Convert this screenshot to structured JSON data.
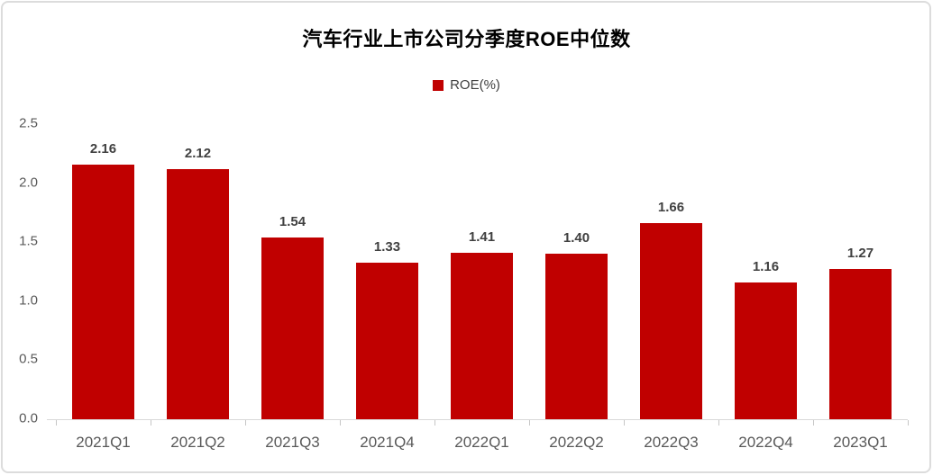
{
  "chart_data": {
    "type": "bar",
    "title": "汽车行业上市公司分季度ROE中位数",
    "legend": "ROE(%)",
    "categories": [
      "2021Q1",
      "2021Q2",
      "2021Q3",
      "2021Q4",
      "2022Q1",
      "2022Q2",
      "2022Q3",
      "2022Q4",
      "2023Q1"
    ],
    "values": [
      2.16,
      2.12,
      1.54,
      1.33,
      1.41,
      1.4,
      1.66,
      1.16,
      1.27
    ],
    "value_labels": [
      "2.16",
      "2.12",
      "1.54",
      "1.33",
      "1.41",
      "1.40",
      "1.66",
      "1.16",
      "1.27"
    ],
    "xlabel": "",
    "ylabel": "",
    "ylim": [
      0,
      2.5
    ],
    "y_ticks": [
      "0.0",
      "0.5",
      "1.0",
      "1.5",
      "2.0",
      "2.5"
    ],
    "grid": false,
    "legend_position": "top-center",
    "colors": {
      "bar": "#c00000",
      "legend_swatch": "#c00000",
      "title": "#000000",
      "value_label": "#404040",
      "axis_label": "#595959",
      "axis_line": "#d9d9d9",
      "frame_border": "#dcdcdc"
    }
  }
}
